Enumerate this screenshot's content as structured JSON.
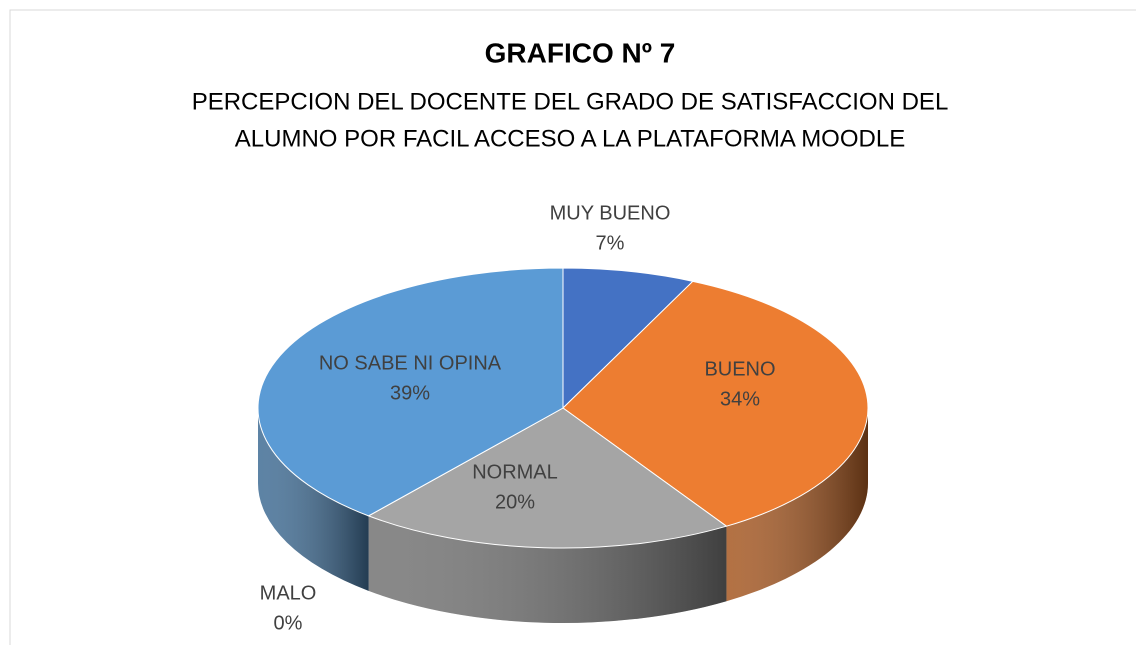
{
  "chart_data": {
    "type": "pie",
    "title": "GRAFICO Nº 7",
    "subtitle": [
      "PERCEPCION DEL DOCENTE DEL GRADO DE SATISFACCION DEL",
      "ALUMNO POR FACIL ACCESO A LA PLATAFORMA MOODLE"
    ],
    "categories": [
      "MUY BUENO",
      "BUENO",
      "NORMAL",
      "MALO",
      "NO SABE NI OPINA"
    ],
    "values": [
      7,
      34,
      20,
      0,
      39
    ],
    "value_labels": [
      "7%",
      "34%",
      "20%",
      "0%",
      "39%"
    ],
    "colors": [
      "#4472c4",
      "#ed7d31",
      "#a5a5a5",
      "#ffc000",
      "#5b9bd5"
    ]
  }
}
